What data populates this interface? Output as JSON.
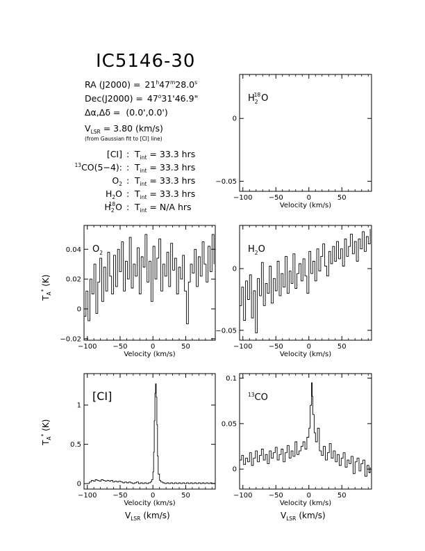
{
  "page_title": "IC5146-30",
  "info": {
    "ra_label": "RA (J2000) =",
    "ra_h": "21",
    "ra_m": "47",
    "ra_s": "28.0",
    "dec_label": "Dec(J2000) =",
    "dec_d": "47",
    "dec_rest": "31'46.9\"",
    "offset_label": "Δα,Δδ = ",
    "offset_value": "(0.0',0.0')",
    "vlsr_prefix": "V",
    "vlsr_sub": "LSR",
    "vlsr_value": "= 3.80 (km/s)",
    "vlsr_note": "(from Gaussian fit to [CI] line)",
    "tint": [
      {
        "line_pre": "[CI]",
        "line_sup": "",
        "line_sub": "",
        "line_post": "",
        "value": "= 33.3 hrs"
      },
      {
        "line_pre": "",
        "line_sup": "13",
        "line_sub": "",
        "line_post": "CO(5−4):",
        "value": "= 33.3 hrs"
      },
      {
        "line_pre": "O",
        "line_sup": "",
        "line_sub": "2",
        "line_post": "",
        "value": "= 33.3 hrs"
      },
      {
        "line_pre": "H",
        "line_sup": "",
        "line_sub": "2",
        "line_post": "O",
        "value": "= 33.3 hrs"
      },
      {
        "line_pre": "H",
        "line_sup": "18",
        "line_sub": "2",
        "line_post": "O",
        "value": "= N/A hrs"
      }
    ],
    "tint_t": "T",
    "tint_sub": "int",
    "colon": ":"
  },
  "axis_text": {
    "velocity": "Velocity (km/s)",
    "vlsr_prefix": "V",
    "vlsr_sub": "LSR",
    "vlsr_unit": "(km/s)",
    "ta_prefix": "T",
    "ta_sub": "A",
    "ta_sup": "*",
    "ta_unit": "(K)"
  },
  "chart_data": [
    {
      "id": "h218o",
      "type": "line",
      "label_parts": {
        "base": "H",
        "sub": "2",
        "sup": "18",
        "rest": "O"
      },
      "xlim": [
        -105,
        95
      ],
      "ylim": [
        -0.058,
        0.035
      ],
      "xticks": [
        -100,
        -50,
        0,
        50
      ],
      "yticks": [
        0,
        -0.05
      ],
      "ytick_labels": [
        "0",
        "−0.05"
      ],
      "xlabel": "Velocity (km/s)",
      "ylabel": "",
      "series": []
    },
    {
      "id": "o2",
      "type": "line",
      "label_parts": {
        "base": "O",
        "sub": "2",
        "sup": "",
        "rest": ""
      },
      "xlim": [
        -105,
        95
      ],
      "ylim": [
        -0.021,
        0.056
      ],
      "xticks": [
        -100,
        -50,
        0,
        50
      ],
      "yticks": [
        0.04,
        0.02,
        0,
        -0.02
      ],
      "ytick_labels": [
        "0.04",
        "0.02",
        "0",
        "−0.02"
      ],
      "xlabel": "Velocity (km/s)",
      "ylabel": "T_A* (K)",
      "series": [
        {
          "x": [
            -105,
            -102,
            -99,
            -96,
            -93,
            -90,
            -87,
            -84,
            -81,
            -78,
            -75,
            -72,
            -69,
            -66,
            -63,
            -60,
            -57,
            -54,
            -51,
            -48,
            -45,
            -42,
            -39,
            -36,
            -33,
            -30,
            -27,
            -24,
            -21,
            -18,
            -15,
            -12,
            -9,
            -6,
            -3,
            0,
            3,
            6,
            9,
            12,
            15,
            18,
            21,
            24,
            27,
            30,
            33,
            36,
            39,
            42,
            45,
            48,
            51,
            54,
            57,
            60,
            63,
            66,
            69,
            72,
            75,
            78,
            81,
            84,
            87,
            90,
            93
          ],
          "y": [
            -0.005,
            0.012,
            -0.008,
            0.02,
            0.01,
            0.03,
            -0.003,
            0.018,
            0.034,
            0.005,
            0.028,
            0.012,
            0.038,
            0.022,
            0.01,
            0.036,
            0.015,
            0.04,
            0.025,
            0.045,
            0.012,
            0.032,
            0.02,
            0.048,
            0.014,
            0.03,
            0.022,
            0.041,
            0.01,
            0.035,
            0.028,
            0.05,
            0.018,
            0.032,
            0.005,
            0.042,
            0.02,
            0.034,
            0.047,
            0.012,
            0.03,
            0.022,
            0.038,
            0.015,
            0.044,
            0.026,
            0.034,
            0.01,
            0.028,
            0.02,
            0.036,
            0.012,
            -0.01,
            0.018,
            0.03,
            0.024,
            0.04,
            0.015,
            0.035,
            0.022,
            0.045,
            0.03,
            0.018,
            0.042,
            0.025,
            0.05,
            0.03
          ]
        }
      ]
    },
    {
      "id": "h2o",
      "type": "line",
      "label_parts": {
        "base": "H",
        "sub": "2",
        "sup": "",
        "rest": "O"
      },
      "xlim": [
        -105,
        95
      ],
      "ylim": [
        -0.058,
        0.035
      ],
      "xticks": [
        -100,
        -50,
        0,
        50
      ],
      "yticks": [
        0,
        -0.05
      ],
      "ytick_labels": [
        "0",
        "−0.05"
      ],
      "xlabel": "Velocity (km/s)",
      "ylabel": "",
      "series": [
        {
          "x": [
            -105,
            -102,
            -99,
            -96,
            -93,
            -90,
            -87,
            -84,
            -81,
            -78,
            -75,
            -72,
            -69,
            -66,
            -63,
            -60,
            -57,
            -54,
            -51,
            -48,
            -45,
            -42,
            -39,
            -36,
            -33,
            -30,
            -27,
            -24,
            -21,
            -18,
            -15,
            -12,
            -9,
            -6,
            -3,
            0,
            3,
            6,
            9,
            12,
            15,
            18,
            21,
            24,
            27,
            30,
            33,
            36,
            39,
            42,
            45,
            48,
            51,
            54,
            57,
            60,
            63,
            66,
            69,
            72,
            75,
            78,
            81,
            84,
            87,
            90,
            93
          ],
          "y": [
            -0.03,
            -0.015,
            -0.042,
            -0.01,
            -0.025,
            -0.005,
            -0.04,
            -0.018,
            -0.052,
            -0.008,
            -0.022,
            0.005,
            -0.03,
            -0.012,
            -0.02,
            0.002,
            -0.028,
            -0.008,
            -0.018,
            0.006,
            -0.022,
            -0.004,
            -0.015,
            0.01,
            -0.02,
            -0.002,
            -0.012,
            0.012,
            -0.016,
            -0.004,
            0.004,
            -0.01,
            0.008,
            -0.006,
            -0.02,
            0.014,
            -0.004,
            0.006,
            -0.01,
            0.016,
            -0.002,
            0.01,
            0.02,
            0.002,
            -0.006,
            0.014,
            0.004,
            0.018,
            0.006,
            0.022,
            0.008,
            0.016,
            0.002,
            0.024,
            0.01,
            0.018,
            0.028,
            0.012,
            0.022,
            0.006,
            0.024,
            0.016,
            0.03,
            0.014,
            0.026,
            0.02,
            0.032
          ]
        }
      ]
    },
    {
      "id": "ci",
      "type": "line",
      "label_parts": {
        "base": "[CI]",
        "sub": "",
        "sup": "",
        "rest": ""
      },
      "xlim": [
        -105,
        95
      ],
      "ylim": [
        -0.07,
        1.4
      ],
      "xticks": [
        -100,
        -50,
        0,
        50
      ],
      "yticks": [
        1,
        0.5,
        0
      ],
      "ytick_labels": [
        "1",
        "0.5",
        "0"
      ],
      "xlabel": "Velocity (km/s)",
      "xlabel2": "VLSR (km/s)",
      "ylabel": "T_A* (K)",
      "series": [
        {
          "x": [
            -100,
            -97,
            -94,
            -91,
            -88,
            -85,
            -82,
            -79,
            -76,
            -73,
            -70,
            -67,
            -64,
            -61,
            -58,
            -55,
            -52,
            -49,
            -46,
            -43,
            -40,
            -37,
            -34,
            -31,
            -28,
            -25,
            -22,
            -19,
            -16,
            -13,
            -10,
            -7,
            -4,
            -2,
            0,
            1,
            2,
            3,
            4,
            5,
            6,
            7,
            8,
            10,
            12,
            15,
            18,
            21,
            24,
            27,
            30,
            33,
            36,
            39,
            42,
            45,
            48,
            51,
            54,
            57,
            60,
            63,
            66,
            69,
            72,
            75,
            78,
            81,
            84,
            87,
            90,
            93
          ],
          "y": [
            0.0,
            0.02,
            0.04,
            0.03,
            0.05,
            0.04,
            0.03,
            0.05,
            0.04,
            0.03,
            0.04,
            0.03,
            0.04,
            0.02,
            0.03,
            0.02,
            0.03,
            0.02,
            0.01,
            0.02,
            0.01,
            0.02,
            0.01,
            0.0,
            0.01,
            0.02,
            0.0,
            0.01,
            0.0,
            0.01,
            0.0,
            0.01,
            0.02,
            0.05,
            0.15,
            0.4,
            0.8,
            1.15,
            1.27,
            1.1,
            0.75,
            0.35,
            0.12,
            0.04,
            0.02,
            0.01,
            0.0,
            0.01,
            0.0,
            0.01,
            0.0,
            0.01,
            0.0,
            0.01,
            0.0,
            0.01,
            0.0,
            0.01,
            0.0,
            0.01,
            0.0,
            0.01,
            0.0,
            0.01,
            0.0,
            0.01,
            0.0,
            0.01,
            0.0,
            0.01,
            0.0,
            0.01
          ]
        }
      ]
    },
    {
      "id": "co13",
      "type": "line",
      "label_parts": {
        "base": "",
        "sub": "",
        "sup": "13",
        "rest": "CO"
      },
      "xlim": [
        -105,
        95
      ],
      "ylim": [
        -0.022,
        0.105
      ],
      "xticks": [
        -100,
        -50,
        0,
        50
      ],
      "yticks": [
        0.1,
        0.05,
        0
      ],
      "ytick_labels": [
        "0.1",
        "0.05",
        "0"
      ],
      "xlabel": "Velocity (km/s)",
      "xlabel2": "VLSR (km/s)",
      "ylabel": "",
      "series": [
        {
          "x": [
            -105,
            -102,
            -99,
            -96,
            -93,
            -90,
            -87,
            -84,
            -81,
            -78,
            -75,
            -72,
            -69,
            -66,
            -63,
            -60,
            -57,
            -54,
            -51,
            -48,
            -45,
            -42,
            -39,
            -36,
            -33,
            -30,
            -27,
            -24,
            -21,
            -18,
            -15,
            -12,
            -9,
            -6,
            -3,
            0,
            2,
            4,
            5,
            6,
            8,
            10,
            13,
            16,
            19,
            22,
            25,
            28,
            31,
            34,
            37,
            40,
            43,
            46,
            49,
            52,
            55,
            58,
            61,
            64,
            67,
            70,
            73,
            76,
            79,
            82,
            85,
            88,
            91,
            93
          ],
          "y": [
            0.01,
            0.015,
            0.005,
            0.012,
            0.008,
            0.018,
            0.004,
            0.012,
            0.02,
            0.008,
            0.015,
            0.022,
            0.01,
            0.016,
            0.006,
            0.02,
            0.012,
            0.018,
            0.024,
            0.01,
            0.016,
            0.022,
            0.008,
            0.018,
            0.026,
            0.012,
            0.02,
            0.014,
            0.03,
            0.016,
            0.02,
            0.025,
            0.03,
            0.022,
            0.035,
            0.045,
            0.07,
            0.095,
            0.08,
            0.06,
            0.04,
            0.03,
            0.045,
            0.02,
            0.015,
            0.025,
            0.01,
            0.018,
            0.028,
            0.012,
            0.02,
            0.008,
            0.016,
            0.004,
            0.012,
            0.018,
            0.002,
            0.01,
            0.006,
            0.014,
            -0.005,
            0.008,
            0.012,
            -0.002,
            0.006,
            0.01,
            -0.008,
            0.004,
            -0.004,
            0.002
          ]
        }
      ]
    }
  ]
}
